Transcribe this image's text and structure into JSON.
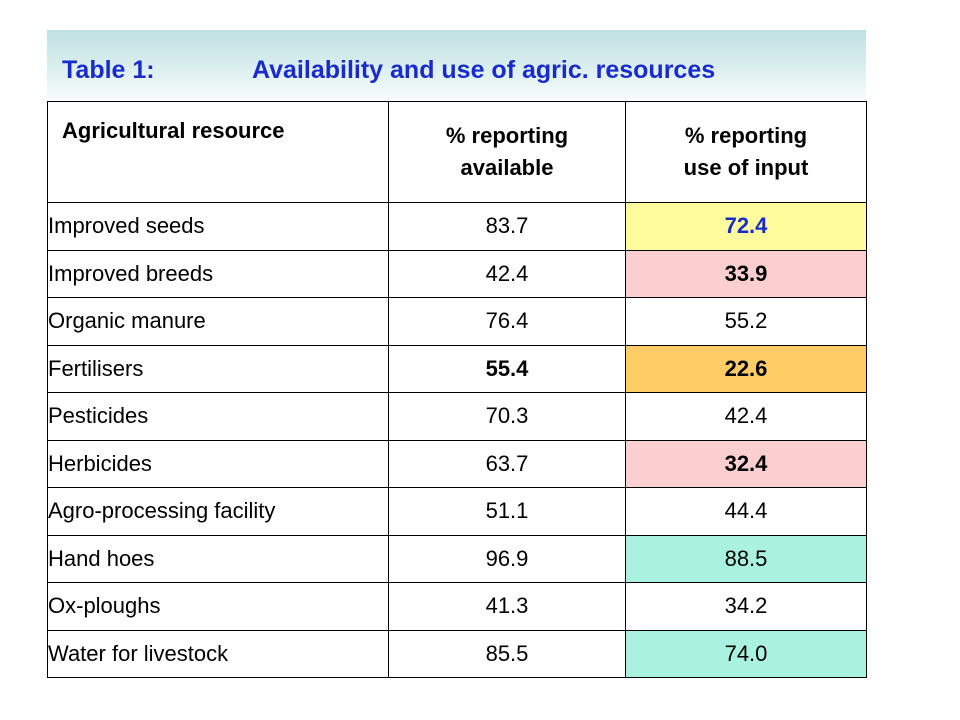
{
  "title": {
    "label": "Table 1:",
    "text": "Availability and use of agric. resources"
  },
  "colors": {
    "title_text": "#1a2bcc",
    "highlight_yellow": "#fffc9e",
    "highlight_pink": "#fbcfcf",
    "highlight_orange": "#ffcc66",
    "highlight_mint": "#aaf2e0"
  },
  "table": {
    "headers": {
      "resource": "Agricultural resource",
      "available_line1": "% reporting",
      "available_line2": "available",
      "use_line1": "% reporting",
      "use_line2": "use of input"
    },
    "rows": [
      {
        "resource": "Improved seeds",
        "available": "83.7",
        "use": "72.4",
        "use_highlight": "yellow",
        "use_bold": true,
        "use_blue": true,
        "available_bold": false
      },
      {
        "resource": "Improved breeds",
        "available": "42.4",
        "use": "33.9",
        "use_highlight": "pink",
        "use_bold": true,
        "use_blue": false,
        "available_bold": false
      },
      {
        "resource": "Organic manure",
        "available": "76.4",
        "use": "55.2",
        "use_highlight": "none",
        "use_bold": false,
        "use_blue": false,
        "available_bold": false
      },
      {
        "resource": "Fertilisers",
        "available": "55.4",
        "use": "22.6",
        "use_highlight": "orange",
        "use_bold": true,
        "use_blue": false,
        "available_bold": true
      },
      {
        "resource": "Pesticides",
        "available": "70.3",
        "use": "42.4",
        "use_highlight": "none",
        "use_bold": false,
        "use_blue": false,
        "available_bold": false
      },
      {
        "resource": "Herbicides",
        "available": "63.7",
        "use": "32.4",
        "use_highlight": "pink",
        "use_bold": true,
        "use_blue": false,
        "available_bold": false
      },
      {
        "resource": "Agro-processing facility",
        "available": "51.1",
        "use": "44.4",
        "use_highlight": "none",
        "use_bold": false,
        "use_blue": false,
        "available_bold": false
      },
      {
        "resource": "Hand hoes",
        "available": "96.9",
        "use": "88.5",
        "use_highlight": "mint",
        "use_bold": false,
        "use_blue": false,
        "available_bold": false
      },
      {
        "resource": "Ox-ploughs",
        "available": "41.3",
        "use": "34.2",
        "use_highlight": "none",
        "use_bold": false,
        "use_blue": false,
        "available_bold": false
      },
      {
        "resource": "Water for livestock",
        "available": "85.5",
        "use": "74.0",
        "use_highlight": "mint",
        "use_bold": false,
        "use_blue": false,
        "available_bold": false
      }
    ]
  }
}
